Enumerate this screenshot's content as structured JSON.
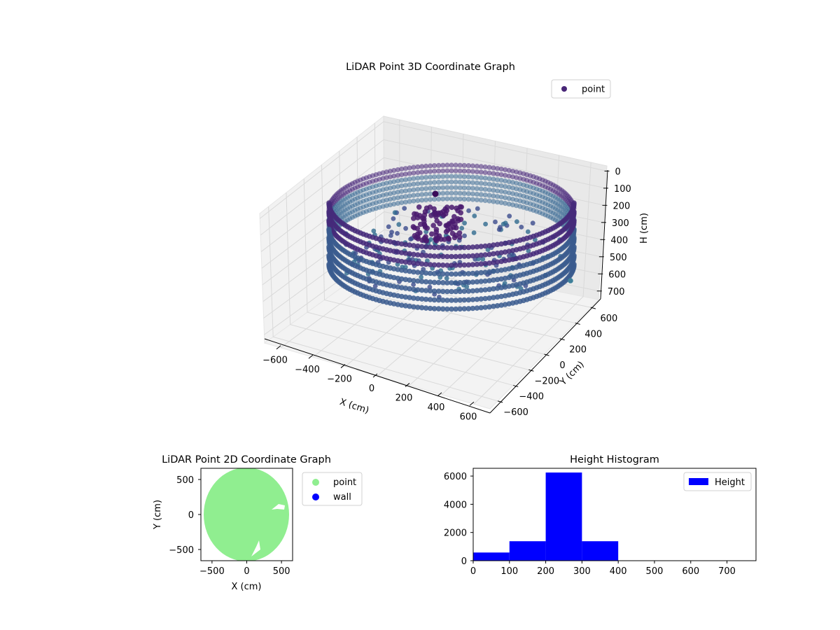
{
  "chart_data": [
    {
      "type": "scatter3d",
      "title": "LiDAR Point 3D Coordinate Graph",
      "xlabel": "X (cm)",
      "ylabel": "Y (cm)",
      "zlabel": "H (cm)",
      "xticks": [
        -600,
        -400,
        -200,
        0,
        200,
        400,
        600
      ],
      "yticks": [
        -600,
        -400,
        -200,
        0,
        200,
        400,
        600
      ],
      "zticks": [
        0,
        100,
        200,
        300,
        400,
        500,
        600,
        700
      ],
      "zaxis_inverted": true,
      "legend": [
        "point"
      ],
      "legend_position": "top-right",
      "colormap": "viridis",
      "point_color": "#482677",
      "wall_radius_cm": 600,
      "wall_height_cm": [
        0,
        400
      ]
    },
    {
      "type": "scatter",
      "title": "LiDAR Point 2D Coordinate Graph",
      "xlabel": "X (cm)",
      "ylabel": "Y (cm)",
      "xticks": [
        -500,
        0,
        500
      ],
      "yticks": [
        500,
        0,
        -500
      ],
      "xlim": [
        -660,
        660
      ],
      "ylim": [
        -660,
        660
      ],
      "series": [
        {
          "name": "point",
          "color": "#90ee90"
        },
        {
          "name": "wall",
          "color": "#0000ff"
        }
      ],
      "legend_position": "outside-right"
    },
    {
      "type": "bar",
      "title": "Height Histogram",
      "xticks": [
        0,
        100,
        200,
        300,
        400,
        500,
        600,
        700
      ],
      "yticks": [
        0,
        2000,
        4000,
        6000
      ],
      "xlim": [
        0,
        780
      ],
      "ylim": [
        0,
        6550
      ],
      "bins": [
        {
          "from": 0,
          "to": 100,
          "value": 580
        },
        {
          "from": 100,
          "to": 200,
          "value": 1380
        },
        {
          "from": 200,
          "to": 300,
          "value": 6250
        },
        {
          "from": 300,
          "to": 400,
          "value": 1380
        }
      ],
      "legend": [
        "Height"
      ],
      "color": "#0000ff",
      "legend_position": "top-right"
    }
  ]
}
